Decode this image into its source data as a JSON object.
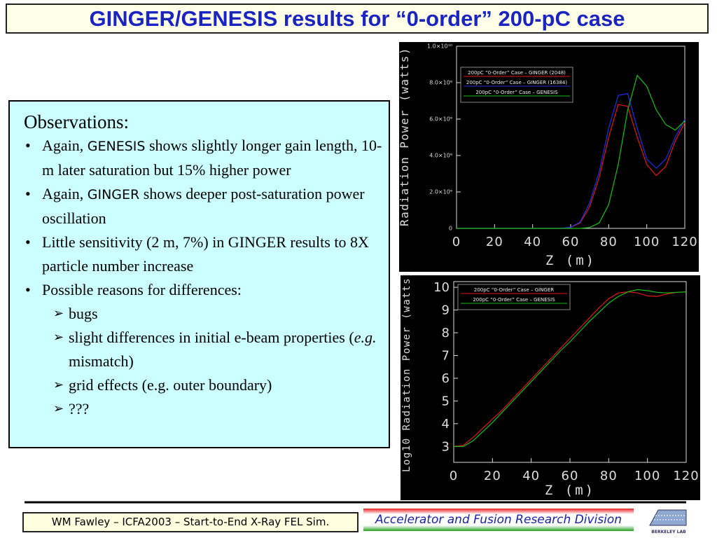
{
  "title": "GINGER/GENESIS results for “0-order” 200-pC case",
  "observations": {
    "heading": "Observations:",
    "bullets": [
      [
        "Again, ",
        "GENESIS",
        " shows slightly longer gain length, 10-m later saturation but 15% higher power"
      ],
      [
        "Again, ",
        "GINGER",
        " shows deeper post-saturation power oscillation"
      ],
      [
        "Little sensitivity (2 m, 7%) in GINGER results to 8X particle number increase"
      ],
      [
        "Possible reasons for differences:"
      ]
    ],
    "sub_bullets": [
      [
        "bugs"
      ],
      [
        "slight differences in initial e-beam properties (",
        "e.g.",
        " mismatch)"
      ],
      [
        "grid effects (e.g. outer boundary)"
      ],
      [
        "???"
      ]
    ]
  },
  "footer": {
    "left": "WM Fawley – ICFA2003 – Start-to-End X-Ray FEL Sim.",
    "right": "Accelerator and Fusion Research Division",
    "logo": "BERKELEY LAB"
  },
  "chart_data": [
    {
      "type": "line",
      "ylabel": "Radiation  Power  (watts)",
      "xlabel": "Z (m)",
      "legend": "upper left",
      "grid": false,
      "x": [
        0,
        5,
        10,
        15,
        20,
        25,
        30,
        35,
        40,
        45,
        50,
        55,
        60,
        65,
        70,
        75,
        80,
        85,
        90,
        95,
        100,
        105,
        110,
        115,
        120
      ],
      "xlim": [
        0,
        120
      ],
      "xticks": [
        0,
        20,
        40,
        60,
        80,
        100,
        120
      ],
      "ylim": [
        0,
        10000000000
      ],
      "yticks": [
        0,
        {
          "value": 2000000000,
          "label": "2.0×10⁹"
        },
        {
          "value": 4000000000,
          "label": "4.0×10⁹"
        },
        {
          "value": 6000000000,
          "label": "6.0×10⁹"
        },
        {
          "value": 8000000000,
          "label": "8.0×10⁹"
        },
        {
          "value": 10000000000,
          "label": "1.0×10¹⁰"
        }
      ],
      "series": [
        {
          "name": "200pC “0-Order” Case – GINGER (2048)",
          "color": "#e01818",
          "values": [
            0,
            0,
            0,
            0,
            0,
            0,
            0,
            0,
            0,
            0,
            0,
            0,
            50000000,
            300000000,
            1200000000,
            2800000000,
            5000000000,
            6800000000,
            6700000000,
            5000000000,
            3500000000,
            2900000000,
            3400000000,
            4800000000,
            5800000000
          ]
        },
        {
          "name": "200pC “0-Order” Case – GINGER (16384)",
          "color": "#2030e0",
          "values": [
            0,
            0,
            0,
            0,
            0,
            0,
            0,
            0,
            0,
            0,
            0,
            0,
            60000000,
            350000000,
            1400000000,
            3100000000,
            5500000000,
            7300000000,
            7400000000,
            5500000000,
            3800000000,
            3300000000,
            3800000000,
            5000000000,
            6000000000
          ]
        },
        {
          "name": "200pC “0-Order” Case – GENESIS",
          "color": "#18c018",
          "values": [
            0,
            0,
            0,
            0,
            0,
            0,
            0,
            0,
            0,
            0,
            0,
            0,
            0,
            0,
            50000000,
            300000000,
            1300000000,
            3500000000,
            6500000000,
            8400000000,
            7800000000,
            6500000000,
            5700000000,
            5400000000,
            5900000000
          ]
        }
      ]
    },
    {
      "type": "line",
      "ylabel": "Log10  Radiation  Power  (watts)",
      "xlabel": "Z (m)",
      "legend": "upper left",
      "grid": false,
      "x": [
        0,
        5,
        10,
        15,
        20,
        25,
        30,
        35,
        40,
        45,
        50,
        55,
        60,
        65,
        70,
        75,
        80,
        85,
        90,
        95,
        100,
        105,
        110,
        115,
        120
      ],
      "xlim": [
        0,
        120
      ],
      "xticks": [
        0,
        20,
        40,
        60,
        80,
        100,
        120
      ],
      "ylim": [
        2.3,
        10.25
      ],
      "yticks": [
        3,
        4,
        5,
        6,
        7,
        8,
        9,
        10
      ],
      "series": [
        {
          "name": "200pC “0-Order” Case – GINGER",
          "color": "#e01818",
          "values": [
            3.0,
            3.05,
            3.4,
            3.8,
            4.2,
            4.6,
            5.05,
            5.5,
            5.95,
            6.4,
            6.85,
            7.3,
            7.75,
            8.2,
            8.65,
            9.1,
            9.5,
            9.75,
            9.8,
            9.75,
            9.62,
            9.6,
            9.7,
            9.78,
            9.8
          ]
        },
        {
          "name": "200pC “0-Order” Case – GENESIS",
          "color": "#18c018",
          "values": [
            3.0,
            3.0,
            3.25,
            3.65,
            4.05,
            4.5,
            4.95,
            5.4,
            5.85,
            6.3,
            6.75,
            7.2,
            7.6,
            8.05,
            8.5,
            8.9,
            9.3,
            9.6,
            9.8,
            9.9,
            9.85,
            9.78,
            9.75,
            9.78,
            9.8
          ]
        }
      ]
    }
  ]
}
